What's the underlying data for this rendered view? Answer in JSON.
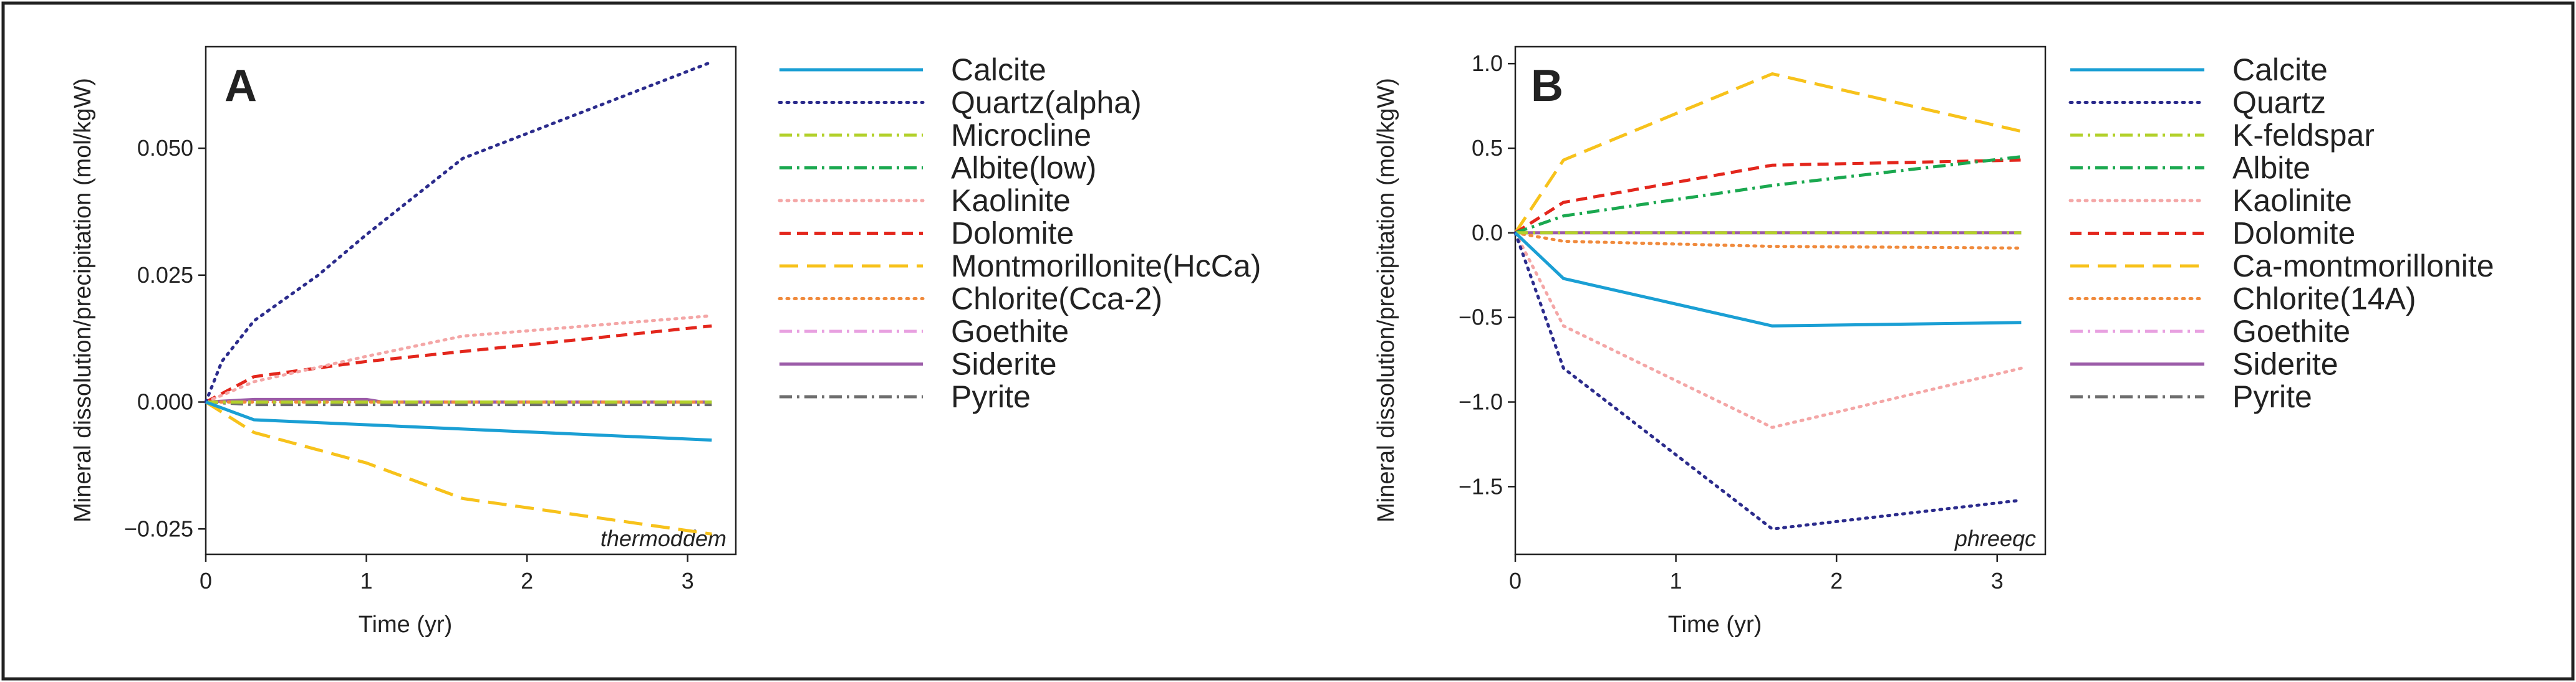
{
  "chart_data": [
    {
      "type": "line",
      "panel_label": "A",
      "annotation": "thermoddem",
      "xlabel": "Time (yr)",
      "ylabel": "Mineral dissolution/precipitation (mol/kgW)",
      "xlim": [
        0,
        3.3
      ],
      "ylim": [
        -0.03,
        0.07
      ],
      "xticks": [
        0,
        1,
        2,
        3
      ],
      "xtick_labels": [
        "0",
        "1",
        "2",
        "3"
      ],
      "yticks": [
        -0.025,
        0,
        0.025,
        0.05
      ],
      "ytick_labels": [
        "−0.025",
        "0.000",
        "0.025",
        "0.050"
      ],
      "grid": false,
      "legend_position": "right",
      "series": [
        {
          "name": "Calcite",
          "color": "#1a9fd4",
          "dash": "solid",
          "x": [
            0,
            0.3,
            3.15
          ],
          "y": [
            0,
            -0.0035,
            -0.0075
          ]
        },
        {
          "name": "Quartz(alpha)",
          "color": "#2b2b8c",
          "dash": "dot",
          "x": [
            0,
            0.1,
            0.3,
            0.7,
            1.0,
            1.6,
            3.15
          ],
          "y": [
            0,
            0.008,
            0.016,
            0.025,
            0.033,
            0.048,
            0.067
          ]
        },
        {
          "name": "Microcline",
          "color": "#b3d12b",
          "dash": "dashdot",
          "x": [
            0,
            3.15
          ],
          "y": [
            0,
            0
          ]
        },
        {
          "name": "Albite(low)",
          "color": "#1aa84f",
          "dash": "dashdot",
          "x": [
            0,
            3.15
          ],
          "y": [
            0,
            0
          ]
        },
        {
          "name": "Kaolinite",
          "color": "#f4a6a6",
          "dash": "dot",
          "x": [
            0,
            0.3,
            1.0,
            1.6,
            3.15
          ],
          "y": [
            0,
            0.004,
            0.009,
            0.013,
            0.017
          ]
        },
        {
          "name": "Dolomite",
          "color": "#e3261c",
          "dash": "dash",
          "x": [
            0,
            0.3,
            1.0,
            3.15
          ],
          "y": [
            0,
            0.005,
            0.008,
            0.015
          ]
        },
        {
          "name": "Montmorillonite(HcCa)",
          "color": "#f7c21b",
          "dash": "longdash",
          "x": [
            0,
            0.3,
            1.0,
            1.6,
            3.15
          ],
          "y": [
            0,
            -0.006,
            -0.012,
            -0.019,
            -0.026
          ]
        },
        {
          "name": "Chlorite(Cca-2)",
          "color": "#f08a3c",
          "dash": "dot",
          "x": [
            0,
            3.15
          ],
          "y": [
            0,
            0
          ]
        },
        {
          "name": "Goethite",
          "color": "#e8a0e0",
          "dash": "dashdot",
          "x": [
            0,
            3.15
          ],
          "y": [
            0,
            0
          ]
        },
        {
          "name": "Siderite",
          "color": "#9b5ba8",
          "dash": "solid",
          "x": [
            0,
            0.3,
            1.0,
            1.1,
            3.15
          ],
          "y": [
            0,
            0.0005,
            0.0005,
            0,
            0
          ]
        },
        {
          "name": "Pyrite",
          "color": "#6e6e6e",
          "dash": "dashdot",
          "x": [
            0,
            0.3,
            1.0,
            3.15
          ],
          "y": [
            0,
            -0.0005,
            -0.0005,
            -0.0005
          ]
        }
      ]
    },
    {
      "type": "line",
      "panel_label": "B",
      "annotation": "phreeqc",
      "xlabel": "Time (yr)",
      "ylabel": "Mineral dissolution/precipitation (mol/kgW)",
      "xlim": [
        0,
        3.3
      ],
      "ylim": [
        -1.9,
        1.1
      ],
      "xticks": [
        0,
        1,
        2,
        3
      ],
      "xtick_labels": [
        "0",
        "1",
        "2",
        "3"
      ],
      "yticks": [
        -1.5,
        -1.0,
        -0.5,
        0.0,
        0.5,
        1.0
      ],
      "ytick_labels": [
        "−1.5",
        "−1.0",
        "−0.5",
        "0.0",
        "0.5",
        "1.0"
      ],
      "grid": false,
      "legend_position": "right",
      "series": [
        {
          "name": "Calcite",
          "color": "#1a9fd4",
          "dash": "solid",
          "x": [
            0,
            0.3,
            1.6,
            3.15
          ],
          "y": [
            0,
            -0.27,
            -0.55,
            -0.53
          ]
        },
        {
          "name": "Quartz",
          "color": "#2b2b8c",
          "dash": "dot",
          "x": [
            0,
            0.3,
            1.6,
            3.15
          ],
          "y": [
            0,
            -0.8,
            -1.75,
            -1.58
          ]
        },
        {
          "name": "K-feldspar",
          "color": "#b3d12b",
          "dash": "dashdot",
          "x": [
            0,
            0.3,
            1.6,
            3.15
          ],
          "y": [
            0,
            0,
            0,
            0
          ]
        },
        {
          "name": "Albite",
          "color": "#1aa84f",
          "dash": "dashdot",
          "x": [
            0,
            0.3,
            1.6,
            3.15
          ],
          "y": [
            0,
            0.1,
            0.28,
            0.45
          ]
        },
        {
          "name": "Kaolinite",
          "color": "#f4a6a6",
          "dash": "dot",
          "x": [
            0,
            0.3,
            1.6,
            3.15
          ],
          "y": [
            0,
            -0.55,
            -1.15,
            -0.8
          ]
        },
        {
          "name": "Dolomite",
          "color": "#e3261c",
          "dash": "dash",
          "x": [
            0,
            0.3,
            1.6,
            3.15
          ],
          "y": [
            0,
            0.18,
            0.4,
            0.43
          ]
        },
        {
          "name": "Ca-montmorillonite",
          "color": "#f7c21b",
          "dash": "longdash",
          "x": [
            0,
            0.3,
            1.6,
            3.15
          ],
          "y": [
            0,
            0.43,
            0.94,
            0.6
          ]
        },
        {
          "name": "Chlorite(14A)",
          "color": "#f08a3c",
          "dash": "dot",
          "x": [
            0,
            0.3,
            1.6,
            3.15
          ],
          "y": [
            0,
            -0.05,
            -0.08,
            -0.09
          ]
        },
        {
          "name": "Goethite",
          "color": "#e8a0e0",
          "dash": "dashdot",
          "x": [
            0,
            3.15
          ],
          "y": [
            0,
            0
          ]
        },
        {
          "name": "Siderite",
          "color": "#9b5ba8",
          "dash": "solid",
          "x": [
            0,
            3.15
          ],
          "y": [
            0,
            0
          ]
        },
        {
          "name": "Pyrite",
          "color": "#6e6e6e",
          "dash": "dashdot",
          "x": [
            0,
            3.15
          ],
          "y": [
            0,
            0
          ]
        }
      ]
    }
  ]
}
